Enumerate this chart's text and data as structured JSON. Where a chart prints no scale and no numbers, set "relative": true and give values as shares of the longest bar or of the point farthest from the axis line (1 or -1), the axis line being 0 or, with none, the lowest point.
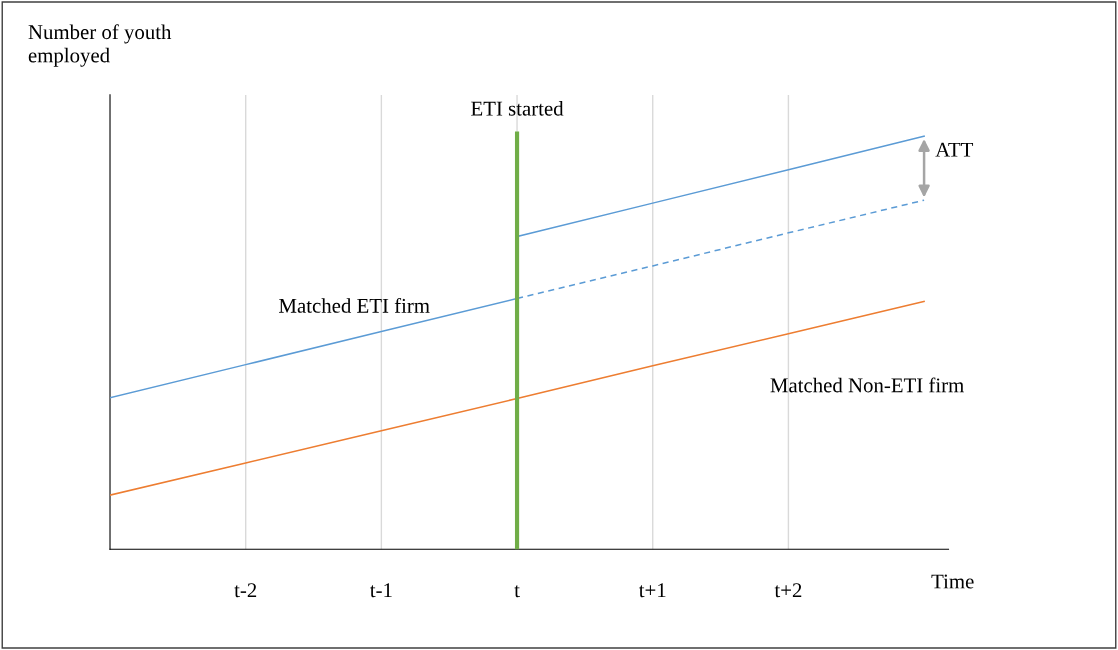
{
  "chart_data": {
    "type": "line",
    "relative": true,
    "ylabel": "Number of youth\nemployed",
    "xlabel": "Time",
    "categories": [
      null,
      "t-2",
      "t-1",
      "t",
      "t+1",
      "t+2",
      null
    ],
    "grid": "x",
    "legend": false,
    "marker": "none",
    "series": [
      {
        "name": "Matched ETI firm",
        "color": "#5b9bd5",
        "values": [
          0.367,
          0.447,
          0.527,
          0.607,
          null,
          null,
          null
        ],
        "line_style": "solid"
      },
      {
        "color": "#5b9bd5",
        "values": [
          null,
          null,
          null,
          0.757,
          0.838,
          0.919,
          1.0
        ],
        "line_style": "solid"
      },
      {
        "color": "#5b9bd5",
        "values": [
          null,
          null,
          null,
          0.607,
          0.686,
          0.766,
          0.845
        ],
        "line_style": "dashed"
      },
      {
        "name": "Matched Non-ETI firm",
        "color": "#ed7d31",
        "values": [
          0.131,
          0.209,
          0.287,
          0.365,
          0.444,
          0.522,
          0.6
        ],
        "line_style": "solid"
      }
    ],
    "ref_lines": [
      {
        "axis": "x",
        "value": "t",
        "label": "ETI started",
        "color": "#70ad47",
        "line_style": "solid"
      }
    ],
    "annotations": [
      "ATT"
    ]
  }
}
